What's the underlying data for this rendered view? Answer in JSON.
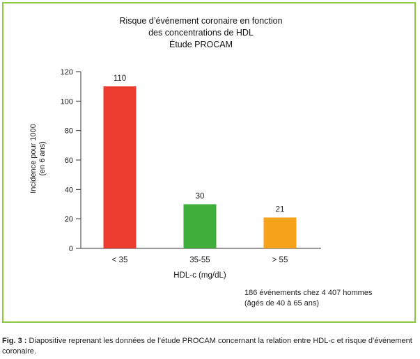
{
  "chart_data": {
    "type": "bar",
    "title_lines": [
      "Risque d’événement coronaire en fonction",
      "des concentrations de HDL",
      "Étude PROCAM"
    ],
    "categories": [
      "< 35",
      "35-55",
      "> 55"
    ],
    "values": [
      110,
      30,
      21
    ],
    "value_labels": [
      "110",
      "30",
      "21"
    ],
    "bar_colors": [
      "#ec3b2f",
      "#3fae3a",
      "#f7a21b"
    ],
    "xlabel": "HDL-c (mg/dL)",
    "ylabel_lines": [
      "Incidence pour 1000",
      "(en 6 ans)"
    ],
    "ylim": [
      0,
      120
    ],
    "yticks": [
      0,
      20,
      40,
      60,
      80,
      100,
      120
    ],
    "grid": false,
    "annotation_lines": [
      "186 événements chez 4 407 hommes",
      "(âgés de 40 à 65 ans)"
    ]
  },
  "caption": {
    "label": "Fig. 3 :",
    "text": " Diapositive reprenant les données de l’étude PROCAM concernant la relation entre HDL-c et risque d’événement coronaire."
  },
  "colors": {
    "border": "#8dc63f",
    "axis": "#333333"
  }
}
